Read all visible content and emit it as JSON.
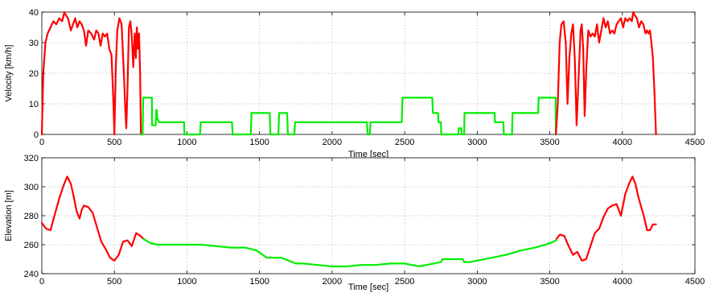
{
  "chart_data": [
    {
      "type": "line",
      "xlabel": "Time [sec]",
      "ylabel": "Velocity [km/h]",
      "xlim": [
        0,
        4500
      ],
      "ylim": [
        0,
        40
      ],
      "xticks": [
        0,
        500,
        1000,
        1500,
        2000,
        2500,
        3000,
        3500,
        4000,
        4500
      ],
      "yticks": [
        0,
        10,
        20,
        30,
        40
      ],
      "grid": true,
      "series": [
        {
          "color": "#ff0000",
          "x": [
            0,
            10,
            25,
            40,
            60,
            80,
            100,
            120,
            140,
            155,
            165,
            180,
            200,
            215,
            230,
            245,
            260,
            275,
            290,
            305,
            320,
            340,
            360,
            375,
            390,
            405,
            420,
            435,
            450,
            465,
            480,
            492,
            500,
            510,
            520,
            535,
            550,
            565,
            575,
            582,
            590,
            600,
            610,
            620,
            630,
            640,
            648,
            655,
            662,
            670,
            677,
            683
          ],
          "y": [
            0,
            20,
            30,
            33,
            35,
            37,
            36,
            38,
            37,
            40,
            39,
            38,
            34,
            36,
            38,
            35,
            37,
            36,
            34,
            29,
            34,
            33,
            31,
            34,
            33,
            29,
            33,
            32,
            33,
            28,
            26,
            12,
            0,
            22,
            34,
            38,
            36,
            20,
            8,
            2,
            15,
            35,
            37,
            32,
            22,
            33,
            25,
            35,
            28,
            33,
            20,
            0
          ]
        },
        {
          "color": "#00ee00",
          "x": [
            683,
            695,
            698,
            758,
            760,
            785,
            788,
            792,
            795,
            800,
            805,
            808,
            980,
            983,
            1090,
            1095,
            1310,
            1315,
            1440,
            1445,
            1570,
            1575,
            1630,
            1635,
            1690,
            1695,
            1740,
            1745,
            2240,
            2245,
            2260,
            2265,
            2480,
            2485,
            2690,
            2695,
            2730,
            2733,
            2750,
            2752,
            2790,
            2793,
            2870,
            2873,
            2890,
            2893,
            2910,
            2912,
            2920,
            2923,
            3120,
            3122,
            3180,
            3183,
            3240,
            3243,
            3420,
            3423,
            3540,
            3542
          ],
          "y": [
            0,
            0,
            12,
            12,
            3,
            3,
            8,
            8,
            5,
            5,
            4,
            4,
            4,
            0,
            0,
            4,
            4,
            0,
            0,
            7,
            7,
            0,
            0,
            7,
            7,
            0,
            0,
            4,
            4,
            0,
            0,
            4,
            4,
            12,
            12,
            7,
            7,
            4,
            4,
            0,
            0,
            0,
            0,
            2,
            2,
            0,
            0,
            7,
            7,
            7,
            7,
            4,
            4,
            0,
            0,
            7,
            7,
            12,
            12,
            0
          ]
        },
        {
          "color": "#ff0000",
          "x": [
            3542,
            3555,
            3568,
            3580,
            3595,
            3610,
            3622,
            3635,
            3648,
            3660,
            3672,
            3685,
            3700,
            3712,
            3720,
            3730,
            3740,
            3752,
            3765,
            3780,
            3795,
            3810,
            3825,
            3840,
            3855,
            3870,
            3885,
            3900,
            3915,
            3930,
            3945,
            3960,
            3975,
            3990,
            4005,
            4020,
            4035,
            4050,
            4065,
            4075,
            4085,
            4100,
            4115,
            4130,
            4145,
            4160,
            4170,
            4180,
            4190,
            4200,
            4210,
            4220,
            4232
          ],
          "y": [
            0,
            10,
            30,
            36,
            37,
            30,
            10,
            25,
            33,
            36,
            25,
            3,
            20,
            34,
            36,
            28,
            6,
            22,
            34,
            32,
            33,
            32,
            36,
            30,
            34,
            38,
            35,
            37,
            33,
            34,
            33,
            36,
            37,
            38,
            35,
            38,
            37,
            38,
            37,
            40,
            39,
            38,
            35,
            37,
            36,
            33,
            34,
            33,
            34,
            30,
            25,
            15,
            0
          ]
        }
      ]
    },
    {
      "type": "line",
      "xlabel": "Time [sec]",
      "ylabel": "Elevation [m]",
      "xlim": [
        0,
        4500
      ],
      "ylim": [
        240,
        320
      ],
      "xticks": [
        0,
        500,
        1000,
        1500,
        2000,
        2500,
        3000,
        3500,
        4000,
        4500
      ],
      "yticks": [
        240,
        260,
        280,
        300,
        320
      ],
      "grid": true,
      "series": [
        {
          "color": "#ff0000",
          "x": [
            0,
            30,
            60,
            90,
            120,
            150,
            175,
            200,
            220,
            240,
            260,
            275,
            290,
            320,
            350,
            380,
            410,
            440,
            470,
            500,
            530,
            560,
            590,
            620,
            650,
            680,
            700
          ],
          "y": [
            275,
            271,
            270,
            281,
            292,
            301,
            307,
            302,
            293,
            283,
            278,
            284,
            287,
            286,
            282,
            272,
            262,
            257,
            251,
            249,
            253,
            262,
            263,
            259,
            268,
            266,
            264
          ]
        },
        {
          "color": "#00ee00",
          "x": [
            700,
            750,
            800,
            900,
            1000,
            1100,
            1200,
            1300,
            1400,
            1480,
            1550,
            1600,
            1650,
            1700,
            1750,
            1800,
            1900,
            2000,
            2100,
            2200,
            2300,
            2400,
            2500,
            2550,
            2600,
            2650,
            2700,
            2750,
            2760,
            2900,
            2910,
            2950,
            3000,
            3100,
            3200,
            3300,
            3400,
            3500,
            3545
          ],
          "y": [
            264,
            261,
            260,
            260,
            260,
            260,
            259,
            258,
            258,
            256,
            251,
            251,
            251,
            249,
            247,
            247,
            246,
            245,
            245,
            246,
            246,
            247,
            247,
            246,
            245,
            246,
            247,
            248,
            250,
            250,
            248,
            248,
            249,
            251,
            253,
            256,
            258,
            261,
            263
          ]
        },
        {
          "color": "#ff0000",
          "x": [
            3545,
            3570,
            3600,
            3630,
            3660,
            3690,
            3720,
            3750,
            3780,
            3810,
            3840,
            3870,
            3900,
            3930,
            3960,
            3990,
            4020,
            4050,
            4070,
            4090,
            4110,
            4130,
            4150,
            4170,
            4190,
            4210,
            4232
          ],
          "y": [
            264,
            267,
            266,
            259,
            253,
            255,
            249,
            250,
            259,
            268,
            271,
            279,
            285,
            287,
            288,
            280,
            295,
            303,
            307,
            302,
            293,
            286,
            279,
            270,
            270,
            274,
            274
          ]
        }
      ]
    }
  ]
}
